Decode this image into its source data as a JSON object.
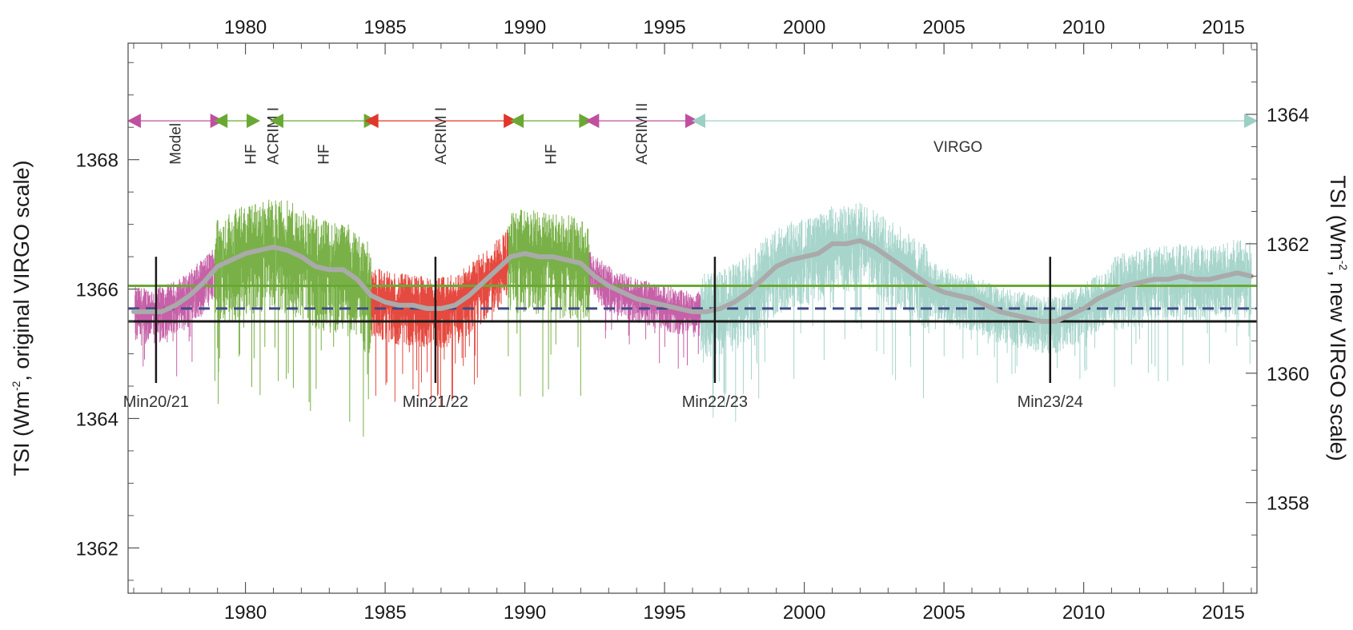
{
  "chart_data": {
    "type": "line",
    "title": "",
    "ylabel_left_parts": [
      "TSI (Wm",
      "-2",
      ", original VIRGO scale)"
    ],
    "ylabel_right_parts": [
      "TSI (Wm",
      "-2",
      ", new VIRGO scale)"
    ],
    "xlim": [
      1975.8,
      2016.2
    ],
    "ylim_left": [
      1361.3,
      1369.8
    ],
    "ylim_right": [
      1356.6,
      1365.1
    ],
    "x_ticks": [
      1980,
      1985,
      1990,
      1995,
      2000,
      2005,
      2010,
      2015
    ],
    "y_ticks_left": [
      1362,
      1364,
      1366,
      1368
    ],
    "y_ticks_right": [
      1358,
      1360,
      1362,
      1364
    ],
    "grid": false,
    "colors": {
      "model": "#c0509f",
      "hf": "#6aa834",
      "acrim": "#e2362b",
      "virgo": "#9dd0c5",
      "smooth": "#aaaaaa",
      "level_black": "#1a1a1a",
      "level_green": "#6aa834",
      "level_dashed": "#3e4a86"
    },
    "reference_lines": [
      {
        "y": 1366.05,
        "style": "solid",
        "color": "#6aa834"
      },
      {
        "y": 1365.7,
        "style": "dashed",
        "color": "#3e4a86"
      },
      {
        "y": 1365.5,
        "style": "solid",
        "color": "#1a1a1a"
      }
    ],
    "instrument_periods": [
      {
        "label": "Model",
        "start": 1976.0,
        "end": 1979.0,
        "color": "#c0509f"
      },
      {
        "label": "HF",
        "start": 1979.1,
        "end": 1980.3,
        "color": "#6aa834"
      },
      {
        "label": "ACRIM I",
        "start": 1980.3,
        "end": 1980.3,
        "color": "#6aa834"
      },
      {
        "label": "HF",
        "start": 1981.1,
        "end": 1984.5,
        "color": "#6aa834"
      },
      {
        "label": "ACRIM I",
        "start": 1984.5,
        "end": 1989.5,
        "color": "#e2362b"
      },
      {
        "label": "HF",
        "start": 1989.7,
        "end": 1992.2,
        "color": "#6aa834"
      },
      {
        "label": "ACRIM II",
        "start": 1992.4,
        "end": 1996.0,
        "color": "#c0509f"
      },
      {
        "label": "VIRGO",
        "start": 1996.2,
        "end": 2016.0,
        "color": "#9dd0c5"
      }
    ],
    "minima": [
      {
        "label": "Min20/21",
        "x": 1976.8
      },
      {
        "label": "Min21/22",
        "x": 1986.8
      },
      {
        "label": "Min22/23",
        "x": 1996.8
      },
      {
        "label": "Min23/24",
        "x": 2008.8
      }
    ],
    "series": [
      {
        "color_key": "smooth",
        "x": [
          1976.0,
          1977.0,
          1977.5,
          1978.0,
          1978.5,
          1979.0,
          1979.5,
          1980.0,
          1980.5,
          1981.0,
          1981.5,
          1982.0,
          1982.5,
          1983.0,
          1983.5,
          1984.0,
          1984.5,
          1985.0,
          1985.5,
          1986.0,
          1986.5,
          1987.0,
          1987.5,
          1988.0,
          1988.5,
          1989.0,
          1989.5,
          1990.0,
          1990.5,
          1991.0,
          1991.5,
          1992.0,
          1992.5,
          1993.0,
          1993.5,
          1994.0,
          1994.5,
          1995.0,
          1995.5,
          1996.0,
          1996.5,
          1997.0,
          1997.5,
          1998.0,
          1998.5,
          1999.0,
          1999.5,
          2000.0,
          2000.5,
          2001.0,
          2001.5,
          2002.0,
          2002.5,
          2003.0,
          2003.5,
          2004.0,
          2004.5,
          2005.0,
          2005.5,
          2006.0,
          2006.5,
          2007.0,
          2007.5,
          2008.0,
          2008.5,
          2009.0,
          2009.5,
          2010.0,
          2010.5,
          2011.0,
          2011.5,
          2012.0,
          2012.5,
          2013.0,
          2013.5,
          2014.0,
          2014.5,
          2015.0,
          2015.5,
          2016.0
        ],
        "values": [
          1365.65,
          1365.65,
          1365.75,
          1365.9,
          1366.1,
          1366.35,
          1366.45,
          1366.55,
          1366.6,
          1366.65,
          1366.6,
          1366.5,
          1366.35,
          1366.3,
          1366.3,
          1366.15,
          1365.9,
          1365.8,
          1365.75,
          1365.75,
          1365.7,
          1365.7,
          1365.75,
          1365.9,
          1366.1,
          1366.3,
          1366.5,
          1366.55,
          1366.5,
          1366.5,
          1366.45,
          1366.4,
          1366.2,
          1366.05,
          1365.95,
          1365.85,
          1365.8,
          1365.75,
          1365.7,
          1365.65,
          1365.65,
          1365.7,
          1365.8,
          1365.95,
          1366.15,
          1366.35,
          1366.45,
          1366.5,
          1366.55,
          1366.7,
          1366.7,
          1366.75,
          1366.65,
          1366.5,
          1366.35,
          1366.2,
          1366.05,
          1365.95,
          1365.9,
          1365.85,
          1365.75,
          1365.65,
          1365.6,
          1365.55,
          1365.5,
          1365.5,
          1365.6,
          1365.7,
          1365.85,
          1365.95,
          1366.05,
          1366.1,
          1366.15,
          1366.15,
          1366.2,
          1366.15,
          1366.15,
          1366.2,
          1366.25,
          1366.2
        ]
      }
    ]
  }
}
